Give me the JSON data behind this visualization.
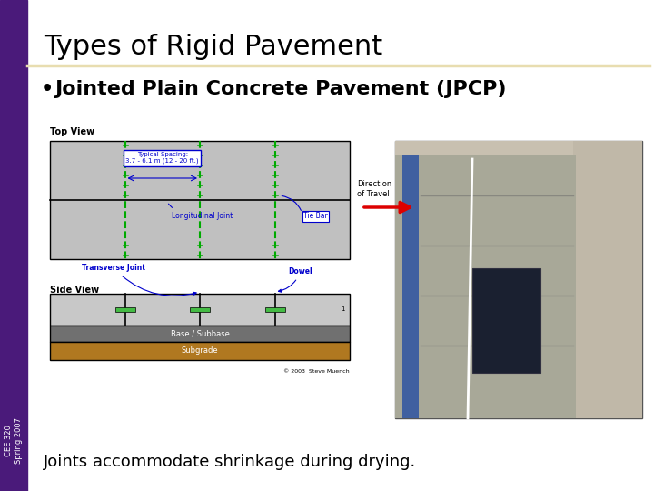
{
  "title": "Types of Rigid Pavement",
  "bullet": "Jointed Plain Concrete Pavement (JPCP)",
  "caption": "Joints accommodate shrinkage during drying.",
  "sidebar_color": "#4a1a7a",
  "title_underline_color": "#e8ddb0",
  "background_color": "#ffffff",
  "title_fontsize": 22,
  "bullet_fontsize": 16,
  "caption_fontsize": 13,
  "sidebar_label": "CEE 320\nSpring 2007",
  "sidebar_label_fontsize": 6,
  "diagram_gray": "#c0c0c0",
  "diagram_dark_gray": "#606060",
  "subgrade_color": "#b07820",
  "joint_green": "#00aa00",
  "label_blue": "#0000cc",
  "arrow_red": "#dd0000"
}
